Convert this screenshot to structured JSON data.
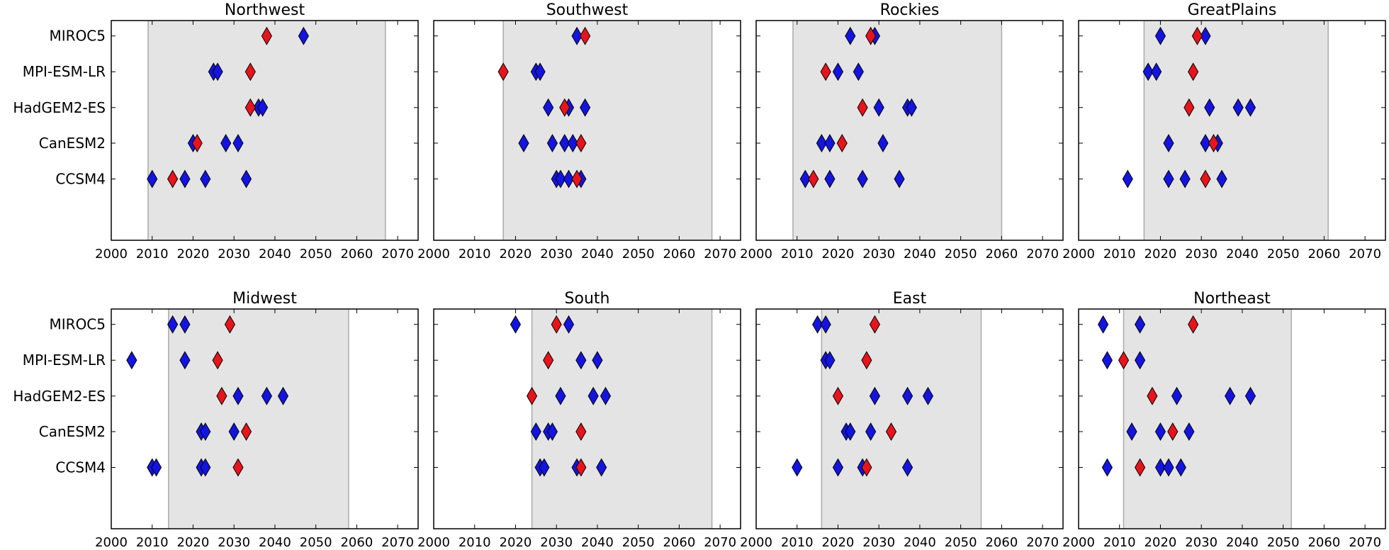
{
  "chart_data": {
    "type": "scatter",
    "models": [
      "MIROC5",
      "MPI-ESM-LR",
      "HadGEM2-ES",
      "CanESM2",
      "CCSM4"
    ],
    "xlim": [
      2000,
      2075
    ],
    "xticks": [
      2000,
      2010,
      2020,
      2030,
      2040,
      2050,
      2060,
      2070
    ],
    "colors": {
      "red": "#e8141c",
      "blue": "#1414e0",
      "band": "#e4e4e4",
      "band_edge": "#aaaaaa"
    },
    "panels": [
      {
        "title": "Northwest",
        "band": [
          2009,
          2067
        ],
        "points": {
          "MIROC5": {
            "red": [
              2038
            ],
            "blue": [
              2047
            ]
          },
          "MPI-ESM-LR": {
            "red": [
              2034
            ],
            "blue": [
              2025,
              2026
            ]
          },
          "HadGEM2-ES": {
            "red": [
              2034
            ],
            "blue": [
              2036,
              2037
            ]
          },
          "CanESM2": {
            "red": [
              2021
            ],
            "blue": [
              2020,
              2028,
              2031
            ]
          },
          "CCSM4": {
            "red": [
              2015
            ],
            "blue": [
              2010,
              2018,
              2023,
              2033
            ]
          }
        }
      },
      {
        "title": "Southwest",
        "band": [
          2017,
          2068
        ],
        "points": {
          "MIROC5": {
            "red": [
              2037
            ],
            "blue": [
              2035
            ]
          },
          "MPI-ESM-LR": {
            "red": [
              2017
            ],
            "blue": [
              2025,
              2026
            ]
          },
          "HadGEM2-ES": {
            "red": [
              2032
            ],
            "blue": [
              2028,
              2033,
              2037
            ]
          },
          "CanESM2": {
            "red": [
              2036
            ],
            "blue": [
              2022,
              2029,
              2032,
              2034
            ]
          },
          "CCSM4": {
            "red": [
              2035
            ],
            "blue": [
              2030,
              2031,
              2033,
              2036
            ]
          }
        }
      },
      {
        "title": "Rockies",
        "band": [
          2009,
          2060
        ],
        "points": {
          "MIROC5": {
            "red": [
              2028
            ],
            "blue": [
              2023,
              2029
            ]
          },
          "MPI-ESM-LR": {
            "red": [
              2017
            ],
            "blue": [
              2020,
              2025
            ]
          },
          "HadGEM2-ES": {
            "red": [
              2026
            ],
            "blue": [
              2030,
              2037,
              2038
            ]
          },
          "CanESM2": {
            "red": [
              2021
            ],
            "blue": [
              2016,
              2018,
              2031
            ]
          },
          "CCSM4": {
            "red": [
              2014
            ],
            "blue": [
              2012,
              2018,
              2026,
              2035
            ]
          }
        }
      },
      {
        "title": "GreatPlains",
        "band": [
          2016,
          2061
        ],
        "points": {
          "MIROC5": {
            "red": [
              2029
            ],
            "blue": [
              2020,
              2031
            ]
          },
          "MPI-ESM-LR": {
            "red": [
              2028
            ],
            "blue": [
              2017,
              2019
            ]
          },
          "HadGEM2-ES": {
            "red": [
              2027
            ],
            "blue": [
              2032,
              2039,
              2042
            ]
          },
          "CanESM2": {
            "red": [
              2033
            ],
            "blue": [
              2022,
              2031,
              2034
            ]
          },
          "CCSM4": {
            "red": [
              2031
            ],
            "blue": [
              2012,
              2022,
              2026,
              2035
            ]
          }
        }
      },
      {
        "title": "Midwest",
        "band": [
          2014,
          2058
        ],
        "points": {
          "MIROC5": {
            "red": [
              2029
            ],
            "blue": [
              2015,
              2018
            ]
          },
          "MPI-ESM-LR": {
            "red": [
              2026
            ],
            "blue": [
              2005,
              2018
            ]
          },
          "HadGEM2-ES": {
            "red": [
              2027
            ],
            "blue": [
              2031,
              2038,
              2042
            ]
          },
          "CanESM2": {
            "red": [
              2033
            ],
            "blue": [
              2022,
              2023,
              2030
            ]
          },
          "CCSM4": {
            "red": [
              2031
            ],
            "blue": [
              2010,
              2011,
              2022,
              2023
            ]
          }
        }
      },
      {
        "title": "South",
        "band": [
          2024,
          2068
        ],
        "points": {
          "MIROC5": {
            "red": [
              2030
            ],
            "blue": [
              2020,
              2033
            ]
          },
          "MPI-ESM-LR": {
            "red": [
              2028
            ],
            "blue": [
              2036,
              2040
            ]
          },
          "HadGEM2-ES": {
            "red": [
              2024
            ],
            "blue": [
              2031,
              2039,
              2042
            ]
          },
          "CanESM2": {
            "red": [
              2036
            ],
            "blue": [
              2025,
              2028,
              2029
            ]
          },
          "CCSM4": {
            "red": [
              2036
            ],
            "blue": [
              2026,
              2027,
              2035,
              2041
            ]
          }
        }
      },
      {
        "title": "East",
        "band": [
          2016,
          2055
        ],
        "points": {
          "MIROC5": {
            "red": [
              2029
            ],
            "blue": [
              2015,
              2017
            ]
          },
          "MPI-ESM-LR": {
            "red": [
              2027
            ],
            "blue": [
              2017,
              2018
            ]
          },
          "HadGEM2-ES": {
            "red": [
              2020
            ],
            "blue": [
              2029,
              2037,
              2042
            ]
          },
          "CanESM2": {
            "red": [
              2033
            ],
            "blue": [
              2022,
              2023,
              2028
            ]
          },
          "CCSM4": {
            "red": [
              2027
            ],
            "blue": [
              2010,
              2020,
              2026,
              2037
            ]
          }
        }
      },
      {
        "title": "Northeast",
        "band": [
          2011,
          2052
        ],
        "points": {
          "MIROC5": {
            "red": [
              2028
            ],
            "blue": [
              2006,
              2015
            ]
          },
          "MPI-ESM-LR": {
            "red": [
              2011
            ],
            "blue": [
              2007,
              2015
            ]
          },
          "HadGEM2-ES": {
            "red": [
              2018
            ],
            "blue": [
              2024,
              2037,
              2042
            ]
          },
          "CanESM2": {
            "red": [
              2023
            ],
            "blue": [
              2013,
              2020,
              2027
            ]
          },
          "CCSM4": {
            "red": [
              2015
            ],
            "blue": [
              2007,
              2020,
              2022,
              2025
            ]
          }
        }
      }
    ]
  }
}
